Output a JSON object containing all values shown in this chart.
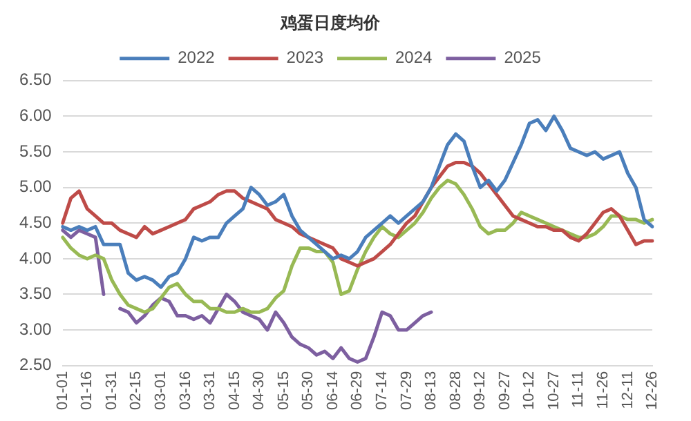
{
  "chart_data": {
    "type": "line",
    "title": "鸡蛋日度均价",
    "categories": [
      "01-01",
      null,
      null,
      "01-16",
      null,
      null,
      "01-31",
      null,
      null,
      "02-15",
      null,
      null,
      "03-01",
      null,
      null,
      "03-16",
      null,
      null,
      "03-31",
      null,
      null,
      "04-15",
      null,
      null,
      "04-30",
      null,
      null,
      "05-15",
      null,
      null,
      "05-30",
      null,
      null,
      "06-14",
      null,
      null,
      "06-29",
      null,
      null,
      "07-14",
      null,
      null,
      "07-29",
      null,
      null,
      "08-13",
      null,
      null,
      "08-28",
      null,
      null,
      "09-12",
      null,
      null,
      "09-27",
      null,
      null,
      "10-12",
      null,
      null,
      "10-27",
      null,
      null,
      "11-11",
      null,
      null,
      "11-26",
      null,
      null,
      "12-11",
      null,
      null,
      "12-26"
    ],
    "series": [
      {
        "name": "2022",
        "color": "#4a7ebb",
        "values": [
          4.45,
          4.4,
          4.45,
          4.4,
          4.45,
          4.2,
          4.2,
          4.2,
          3.8,
          3.7,
          3.75,
          3.7,
          3.6,
          3.75,
          3.8,
          4.0,
          4.3,
          4.25,
          4.3,
          4.3,
          4.5,
          4.6,
          4.7,
          5.0,
          4.9,
          4.75,
          4.8,
          4.9,
          4.6,
          4.4,
          4.3,
          4.2,
          4.1,
          4.0,
          4.05,
          4.0,
          4.1,
          4.3,
          4.4,
          4.5,
          4.6,
          4.5,
          4.6,
          4.7,
          4.8,
          5.0,
          5.3,
          5.6,
          5.75,
          5.65,
          5.3,
          5.0,
          5.1,
          4.95,
          5.1,
          5.35,
          5.6,
          5.9,
          5.95,
          5.8,
          6.0,
          5.8,
          5.55,
          5.5,
          5.45,
          5.5,
          5.4,
          5.45,
          5.5,
          5.2,
          5.0,
          4.55,
          4.45
        ]
      },
      {
        "name": "2023",
        "color": "#be4b48",
        "values": [
          4.5,
          4.85,
          4.95,
          4.7,
          4.6,
          4.5,
          4.5,
          4.4,
          4.35,
          4.3,
          4.45,
          4.35,
          4.4,
          4.45,
          4.5,
          4.55,
          4.7,
          4.75,
          4.8,
          4.9,
          4.95,
          4.95,
          4.85,
          4.8,
          4.75,
          4.7,
          4.55,
          4.5,
          4.45,
          4.35,
          4.3,
          4.25,
          4.2,
          4.15,
          4.0,
          3.95,
          3.9,
          3.95,
          4.0,
          4.1,
          4.2,
          4.35,
          4.5,
          4.6,
          4.8,
          5.0,
          5.15,
          5.3,
          5.35,
          5.35,
          5.3,
          5.2,
          5.05,
          4.9,
          4.75,
          4.6,
          4.55,
          4.5,
          4.45,
          4.45,
          4.4,
          4.4,
          4.3,
          4.25,
          4.35,
          4.5,
          4.65,
          4.7,
          4.6,
          4.4,
          4.2,
          4.25,
          4.25
        ]
      },
      {
        "name": "2024",
        "color": "#98b954",
        "values": [
          4.3,
          4.15,
          4.05,
          4.0,
          4.05,
          4.0,
          3.7,
          3.5,
          3.35,
          3.3,
          3.25,
          3.3,
          3.45,
          3.6,
          3.65,
          3.5,
          3.4,
          3.4,
          3.3,
          3.3,
          3.25,
          3.25,
          3.3,
          3.25,
          3.25,
          3.3,
          3.45,
          3.55,
          3.9,
          4.15,
          4.15,
          4.1,
          4.1,
          3.95,
          3.5,
          3.55,
          3.85,
          4.1,
          4.3,
          4.45,
          4.35,
          4.3,
          4.4,
          4.5,
          4.65,
          4.85,
          5.0,
          5.1,
          5.05,
          4.9,
          4.7,
          4.45,
          4.35,
          4.4,
          4.4,
          4.5,
          4.65,
          4.6,
          4.55,
          4.5,
          4.45,
          4.4,
          4.35,
          4.3,
          4.3,
          4.35,
          4.45,
          4.6,
          4.6,
          4.55,
          4.55,
          4.5,
          4.55
        ]
      },
      {
        "name": "2025",
        "color": "#7d5fa0",
        "values": [
          4.4,
          4.3,
          4.4,
          4.35,
          4.3,
          3.5,
          null,
          3.3,
          3.25,
          3.1,
          3.2,
          3.35,
          3.45,
          3.4,
          3.2,
          3.2,
          3.15,
          3.2,
          3.1,
          3.3,
          3.5,
          3.4,
          3.25,
          3.2,
          3.15,
          3.0,
          3.25,
          3.1,
          2.9,
          2.8,
          2.75,
          2.65,
          2.7,
          2.6,
          2.75,
          2.6,
          2.55,
          2.6,
          2.9,
          3.25,
          3.2,
          3.0,
          3.0,
          3.1,
          3.2,
          3.25,
          null,
          null,
          null,
          null,
          null,
          null,
          null,
          null,
          null,
          null,
          null,
          null,
          null,
          null,
          null,
          null,
          null,
          null,
          null,
          null,
          null,
          null,
          null,
          null,
          null,
          null,
          null
        ]
      }
    ],
    "ylim": [
      2.5,
      6.5
    ],
    "yticks": [
      {
        "value": 2.5,
        "label": "2.50"
      },
      {
        "value": 3,
        "label": "3.00"
      },
      {
        "value": 3.5,
        "label": "3.50"
      },
      {
        "value": 4,
        "label": "4.00"
      },
      {
        "value": 4.5,
        "label": "4.50"
      },
      {
        "value": 5,
        "label": "5.00"
      },
      {
        "value": 5.5,
        "label": "5.50"
      },
      {
        "value": 6,
        "label": "6.00"
      },
      {
        "value": 6.5,
        "label": "6.50"
      }
    ],
    "grid": "y",
    "legend": "top",
    "marker": "none",
    "line_style": "solid"
  }
}
